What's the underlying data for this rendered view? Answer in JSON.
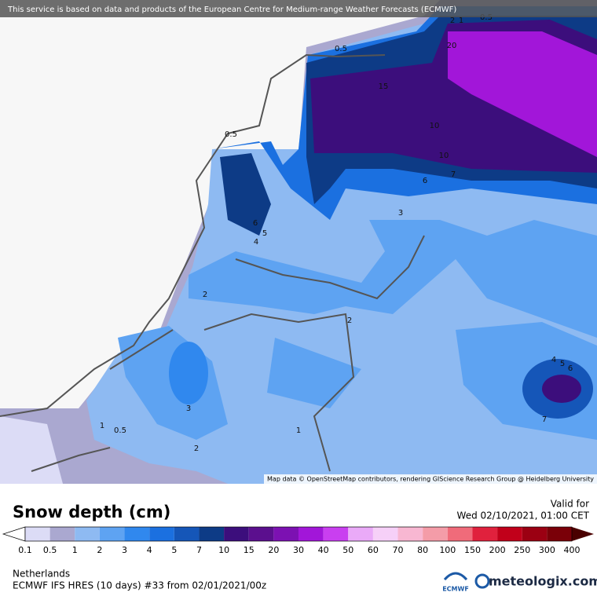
{
  "header": {
    "notice": "This service is based on data and products of the European Centre for Medium-range Weather Forecasts (ECMWF)"
  },
  "map": {
    "attribution": "Map data © OpenStreetMap contributors, rendering GIScience Research Group @ Heidelberg University",
    "contour_labels": [
      "2",
      "1",
      "0.5",
      "0.5",
      "20",
      "15",
      "0.5",
      "10",
      "10",
      "7",
      "6",
      "3",
      "6",
      "5",
      "4",
      "2",
      "2",
      "3",
      "1",
      "0.5",
      "2",
      "1",
      "4",
      "5",
      "6",
      "7"
    ]
  },
  "footer": {
    "title": "Snow depth (cm)",
    "valid_label": "Valid for",
    "valid_time": "Wed 02/10/2021, 01:00 CET",
    "region": "Netherlands",
    "model": "ECMWF IFS HRES (10 days) #33 from  02/01/2021/00z",
    "ecmwf": "ECMWF",
    "brand": "meteologix.com"
  },
  "legend": {
    "labels": [
      0.1,
      0.5,
      1,
      2,
      3,
      4,
      5,
      7,
      10,
      15,
      20,
      30,
      40,
      50,
      60,
      70,
      80,
      100,
      150,
      200,
      250,
      300,
      400
    ],
    "colors": [
      "#dcdcf6",
      "#aaa8d0",
      "#8ebaf2",
      "#5ea3f2",
      "#3088ee",
      "#1b70e0",
      "#1556b8",
      "#0d3b86",
      "#3c0e7c",
      "#5b0f8e",
      "#7c11b2",
      "#a216d9",
      "#c93ff0",
      "#eaaaf8",
      "#f6d0f8",
      "#f8b7d2",
      "#f49ca8",
      "#f06b7a",
      "#e0213d",
      "#c1001a",
      "#9b0012",
      "#7a0008"
    ],
    "under_color": "#ffffff",
    "over_color": "#4a0000"
  }
}
